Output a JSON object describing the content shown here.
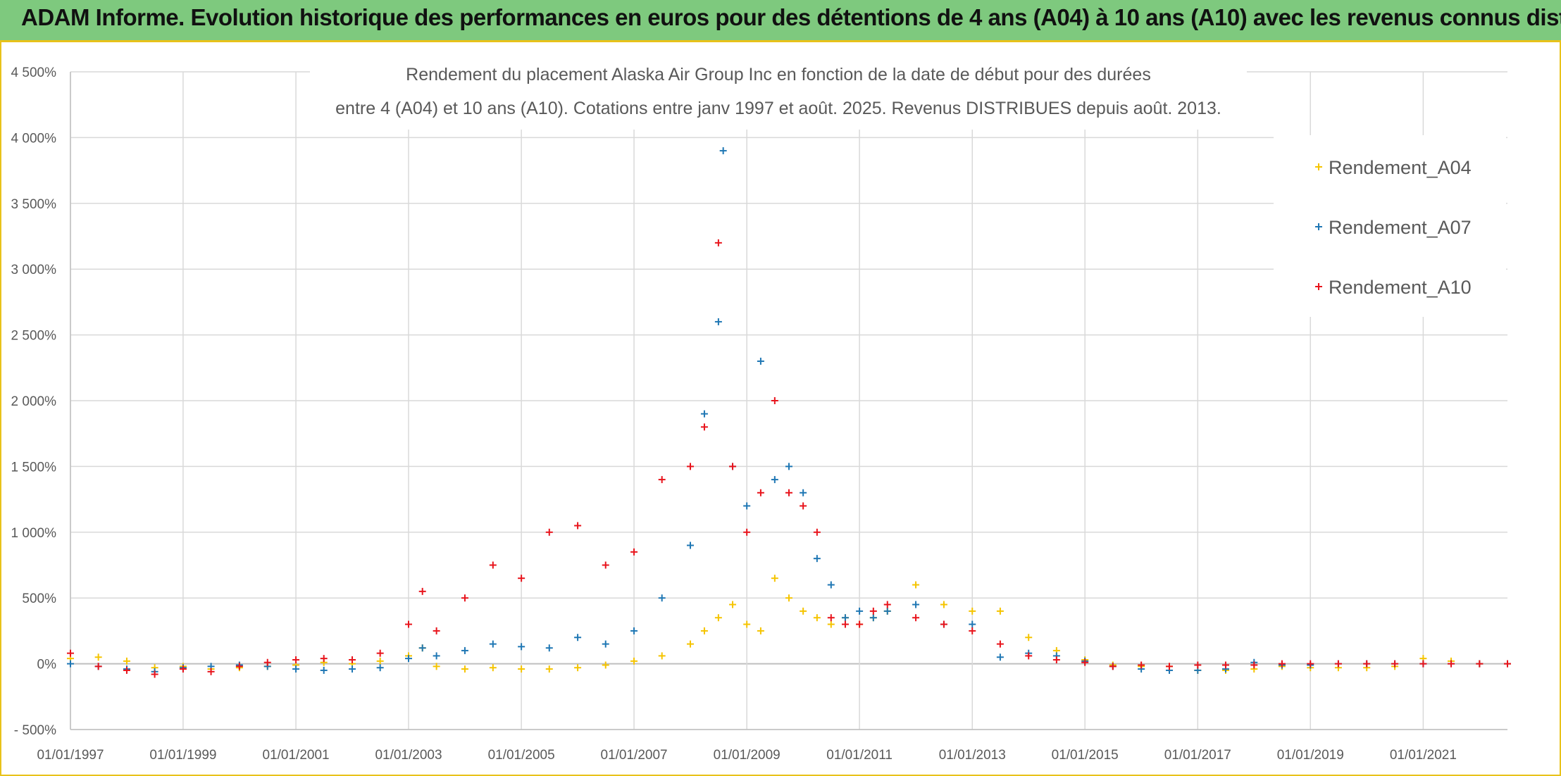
{
  "banner": {
    "text": "ADAM Informe. Evolution historique des performances en euros pour des détentions de 4 ans (A04) à 10 ans (A10) avec les revenus connus distribués"
  },
  "colors": {
    "banner_bg": "#7ec97e",
    "banner_border": "#e8c21a",
    "grid": "#d9d9d9",
    "axis": "#bfbfbf"
  },
  "chart_data": {
    "type": "scatter",
    "title_lines": [
      "Rendement du placement Alaska Air Group Inc en fonction de la date de début pour des durées",
      "entre 4 (A04) et 10 ans (A10). Cotations entre janv 1997 et août. 2025. Revenus DISTRIBUES depuis août. 2013."
    ],
    "x_axis": {
      "type": "date",
      "min": "1997-01-01",
      "max": "2022-07-01",
      "ticks": [
        "1997-01-01",
        "1999-01-01",
        "2001-01-01",
        "2003-01-01",
        "2005-01-01",
        "2007-01-01",
        "2009-01-01",
        "2011-01-01",
        "2013-01-01",
        "2015-01-01",
        "2017-01-01",
        "2019-01-01",
        "2021-01-01"
      ],
      "tick_labels": [
        "01/01/1997",
        "01/01/1999",
        "01/01/2001",
        "01/01/2003",
        "01/01/2005",
        "01/01/2007",
        "01/01/2009",
        "01/01/2011",
        "01/01/2013",
        "01/01/2015",
        "01/01/2017",
        "01/01/2019",
        "01/01/2021"
      ]
    },
    "y_axis": {
      "unit": "%",
      "min": -500,
      "max": 4500,
      "ticks": [
        -500,
        0,
        500,
        1000,
        1500,
        2000,
        2500,
        3000,
        3500,
        4000,
        4500
      ],
      "tick_labels": [
        "- 500%",
        "0%",
        "500%",
        "1 000%",
        "1 500%",
        "2 000%",
        "2 500%",
        "3 000%",
        "3 500%",
        "4 000%",
        "4 500%"
      ]
    },
    "grid": true,
    "marker": "+",
    "legend": {
      "position": "top-right",
      "entries": [
        "Rendement_A04",
        "Rendement_A07",
        "Rendement_A10"
      ]
    },
    "series": [
      {
        "name": "Rendement_A04",
        "color": "#f5c400",
        "x": [
          "1997-01-01",
          "1997-07-01",
          "1998-01-01",
          "1998-07-01",
          "1999-01-01",
          "1999-07-01",
          "2000-01-01",
          "2000-07-01",
          "2001-01-01",
          "2001-07-01",
          "2002-01-01",
          "2002-07-01",
          "2003-01-01",
          "2003-04-01",
          "2003-07-01",
          "2004-01-01",
          "2004-07-01",
          "2005-01-01",
          "2005-07-01",
          "2006-01-01",
          "2006-07-01",
          "2007-01-01",
          "2007-07-01",
          "2008-01-01",
          "2008-04-01",
          "2008-07-01",
          "2008-10-01",
          "2009-01-01",
          "2009-04-01",
          "2009-07-01",
          "2009-10-01",
          "2010-01-01",
          "2010-04-01",
          "2010-07-01",
          "2010-10-01",
          "2011-01-01",
          "2011-04-01",
          "2011-07-01",
          "2012-01-01",
          "2012-07-01",
          "2013-01-01",
          "2013-07-01",
          "2014-01-01",
          "2014-07-01",
          "2015-01-01",
          "2015-07-01",
          "2016-01-01",
          "2016-07-01",
          "2017-01-01",
          "2017-07-01",
          "2018-01-01",
          "2018-07-01",
          "2019-01-01",
          "2019-07-01",
          "2020-01-01",
          "2020-07-01",
          "2021-01-01",
          "2021-07-01",
          "2022-01-01",
          "2022-07-01"
        ],
        "y": [
          40,
          50,
          20,
          -30,
          -20,
          -40,
          -30,
          -20,
          -10,
          10,
          0,
          20,
          60,
          120,
          -20,
          -40,
          -30,
          -40,
          -40,
          -30,
          -10,
          20,
          60,
          150,
          250,
          350,
          450,
          300,
          250,
          650,
          500,
          400,
          350,
          300,
          350,
          300,
          350,
          400,
          600,
          450,
          400,
          400,
          200,
          100,
          30,
          -10,
          -20,
          -20,
          -50,
          -50,
          -40,
          -20,
          -30,
          -30,
          -30,
          -20,
          40,
          20,
          0,
          0
        ]
      },
      {
        "name": "Rendement_A07",
        "color": "#1f77b4",
        "x": [
          "1997-01-01",
          "1997-07-01",
          "1998-01-01",
          "1998-07-01",
          "1999-01-01",
          "1999-07-01",
          "2000-01-01",
          "2000-07-01",
          "2001-01-01",
          "2001-07-01",
          "2002-01-01",
          "2002-07-01",
          "2003-01-01",
          "2003-04-01",
          "2003-07-01",
          "2004-01-01",
          "2004-07-01",
          "2005-01-01",
          "2005-07-01",
          "2006-01-01",
          "2006-07-01",
          "2007-01-01",
          "2007-07-01",
          "2008-01-01",
          "2008-04-01",
          "2008-07-01",
          "2008-08-01",
          "2008-10-01",
          "2009-01-01",
          "2009-04-01",
          "2009-07-01",
          "2009-10-01",
          "2010-01-01",
          "2010-04-01",
          "2010-07-01",
          "2010-10-01",
          "2011-01-01",
          "2011-04-01",
          "2011-07-01",
          "2012-01-01",
          "2012-07-01",
          "2013-01-01",
          "2013-07-01",
          "2014-01-01",
          "2014-07-01",
          "2015-01-01",
          "2015-07-01",
          "2016-01-01",
          "2016-07-01",
          "2017-01-01",
          "2017-07-01",
          "2018-01-01",
          "2018-07-01",
          "2019-01-01",
          "2019-07-01",
          "2020-01-01",
          "2020-07-01",
          "2021-01-01",
          "2021-07-01",
          "2022-01-01",
          "2022-07-01"
        ],
        "y": [
          0,
          -20,
          -40,
          -60,
          -30,
          -20,
          -10,
          -20,
          -40,
          -50,
          -40,
          -30,
          40,
          120,
          60,
          100,
          150,
          130,
          120,
          200,
          150,
          250,
          500,
          900,
          1900,
          2600,
          3900,
          1500,
          1200,
          2300,
          1400,
          1500,
          1300,
          800,
          600,
          350,
          400,
          350,
          400,
          450,
          300,
          300,
          50,
          80,
          60,
          20,
          -20,
          -40,
          -50,
          -50,
          -40,
          10,
          -10,
          -10,
          0,
          0,
          0,
          0,
          0,
          0,
          0
        ]
      },
      {
        "name": "Rendement_A10",
        "color": "#e8141c",
        "x": [
          "1997-01-01",
          "1997-07-01",
          "1998-01-01",
          "1998-07-01",
          "1999-01-01",
          "1999-07-01",
          "2000-01-01",
          "2000-07-01",
          "2001-01-01",
          "2001-07-01",
          "2002-01-01",
          "2002-07-01",
          "2003-01-01",
          "2003-04-01",
          "2003-07-01",
          "2004-01-01",
          "2004-07-01",
          "2005-01-01",
          "2005-07-01",
          "2006-01-01",
          "2006-07-01",
          "2007-01-01",
          "2007-07-01",
          "2008-01-01",
          "2008-04-01",
          "2008-07-01",
          "2008-10-01",
          "2009-01-01",
          "2009-04-01",
          "2009-07-01",
          "2009-10-01",
          "2010-01-01",
          "2010-04-01",
          "2010-07-01",
          "2010-10-01",
          "2011-01-01",
          "2011-04-01",
          "2011-07-01",
          "2012-01-01",
          "2012-07-01",
          "2013-01-01",
          "2013-07-01",
          "2014-01-01",
          "2014-07-01",
          "2015-01-01",
          "2015-07-01",
          "2016-01-01",
          "2016-07-01",
          "2017-01-01",
          "2017-07-01",
          "2018-01-01",
          "2018-07-01",
          "2019-01-01",
          "2019-07-01",
          "2020-01-01",
          "2020-07-01",
          "2021-01-01",
          "2021-07-01",
          "2022-01-01",
          "2022-07-01"
        ],
        "y": [
          80,
          -20,
          -50,
          -80,
          -40,
          -60,
          -20,
          10,
          30,
          40,
          30,
          80,
          300,
          550,
          250,
          500,
          750,
          650,
          1000,
          1050,
          750,
          850,
          1400,
          1500,
          1800,
          3200,
          1500,
          1000,
          1300,
          2000,
          1300,
          1200,
          1000,
          350,
          300,
          300,
          400,
          450,
          350,
          300,
          250,
          150,
          60,
          30,
          10,
          -20,
          -10,
          -20,
          -10,
          -10,
          -10,
          0,
          0,
          0,
          0,
          0,
          0,
          0,
          0,
          0
        ]
      }
    ]
  }
}
